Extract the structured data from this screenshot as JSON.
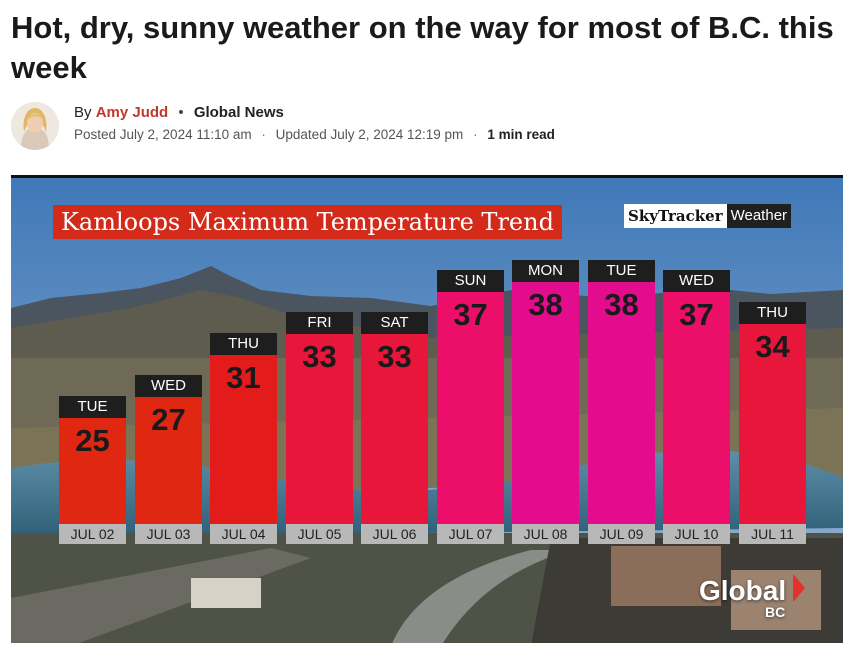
{
  "article": {
    "headline": "Hot, dry, sunny weather on the way for most of B.C. this week",
    "by_prefix": "By",
    "author": "Amy Judd",
    "source": "Global News",
    "posted": "Posted July 2, 2024 11:10 am",
    "updated": "Updated July 2, 2024 12:19 pm",
    "read_time": "1 min read"
  },
  "graphic": {
    "brand_sky": "SkyTracker",
    "brand_weather": "Weather",
    "logo_main": "Global",
    "logo_sub": "BC"
  },
  "chart_data": {
    "type": "bar",
    "title": "Kamloops Maximum Temperature Trend",
    "categories": [
      "JUL 02",
      "JUL 03",
      "JUL 04",
      "JUL 05",
      "JUL 06",
      "JUL 07",
      "JUL 08",
      "JUL 09",
      "JUL 10",
      "JUL 11"
    ],
    "days": [
      "TUE",
      "WED",
      "THU",
      "FRI",
      "SAT",
      "SUN",
      "MON",
      "TUE",
      "WED",
      "THU"
    ],
    "values": [
      25,
      27,
      31,
      33,
      33,
      37,
      38,
      38,
      37,
      34
    ],
    "colors": [
      "#e02712",
      "#e02712",
      "#e41b1b",
      "#e8163a",
      "#e8163a",
      "#ec0f6a",
      "#e20c8c",
      "#e20c8c",
      "#ec0f6a",
      "#e8163a"
    ],
    "xlabel": "",
    "ylabel": "",
    "grid": false,
    "legend": "none"
  }
}
